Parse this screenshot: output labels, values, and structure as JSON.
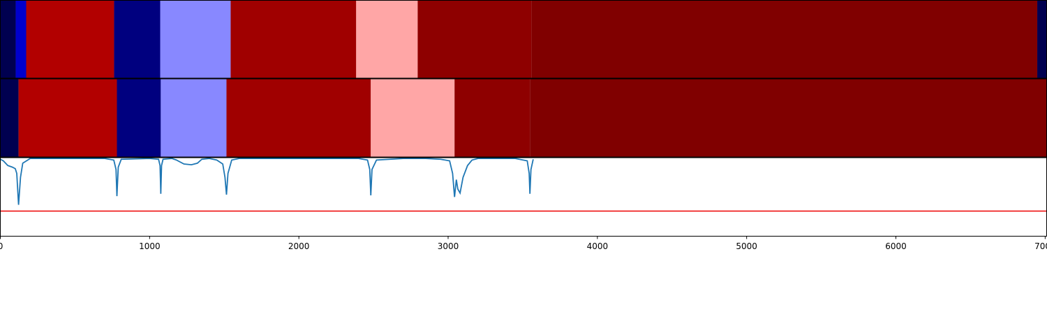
{
  "chart_data": [
    {
      "type": "segments",
      "edges": [
        0,
        103,
        173,
        762,
        1071,
        1543,
        2384,
        2796,
        3558,
        6947,
        7010
      ],
      "colors": [
        "#000050",
        "#0000cc",
        "#b20000",
        "#00007f",
        "#8888ff",
        "#a00000",
        "#ffa6a6",
        "#8e0000",
        "#800000",
        "#000050"
      ],
      "xlim": [
        0,
        7010
      ]
    },
    {
      "type": "segments",
      "edges": [
        0,
        122,
        781,
        1075,
        1515,
        2482,
        3043,
        3548,
        7010
      ],
      "colors": [
        "#000050",
        "#b20000",
        "#00007f",
        "#8888ff",
        "#a00000",
        "#ffa6a6",
        "#8e0000",
        "#800000"
      ],
      "xlim": [
        0,
        7010
      ]
    },
    {
      "type": "line",
      "x": [
        0,
        20,
        50,
        80,
        100,
        110,
        122,
        135,
        150,
        200,
        700,
        760,
        775,
        781,
        790,
        810,
        1000,
        1060,
        1070,
        1075,
        1080,
        1090,
        1150,
        1180,
        1230,
        1280,
        1320,
        1350,
        1400,
        1450,
        1490,
        1505,
        1515,
        1525,
        1550,
        1600,
        2400,
        2460,
        2475,
        2482,
        2490,
        2520,
        2700,
        2850,
        2950,
        3010,
        3030,
        3043,
        3055,
        3065,
        3080,
        3100,
        3130,
        3160,
        3200,
        3450,
        3530,
        3543,
        3548,
        3555,
        3570
      ],
      "series": [
        {
          "color": "#1f77b4",
          "values": [
            0.98,
            0.96,
            0.9,
            0.88,
            0.86,
            0.8,
            0.4,
            0.75,
            0.93,
            0.99,
            0.99,
            0.97,
            0.85,
            0.51,
            0.88,
            0.98,
            0.99,
            0.98,
            0.9,
            0.54,
            0.9,
            0.98,
            0.99,
            0.97,
            0.92,
            0.91,
            0.93,
            0.98,
            0.99,
            0.97,
            0.92,
            0.75,
            0.53,
            0.8,
            0.97,
            0.99,
            0.99,
            0.97,
            0.85,
            0.52,
            0.85,
            0.97,
            0.99,
            0.99,
            0.98,
            0.96,
            0.8,
            0.5,
            0.72,
            0.6,
            0.55,
            0.75,
            0.9,
            0.97,
            0.99,
            0.99,
            0.96,
            0.8,
            0.54,
            0.85,
            0.98
          ]
        }
      ],
      "threshold": {
        "value": 0.32,
        "color": "#ee0000"
      },
      "ylim": [
        0,
        1
      ],
      "xlim": [
        0,
        7010
      ],
      "xticks": [
        0,
        1000,
        2000,
        3000,
        4000,
        5000,
        6000,
        7000
      ]
    }
  ]
}
